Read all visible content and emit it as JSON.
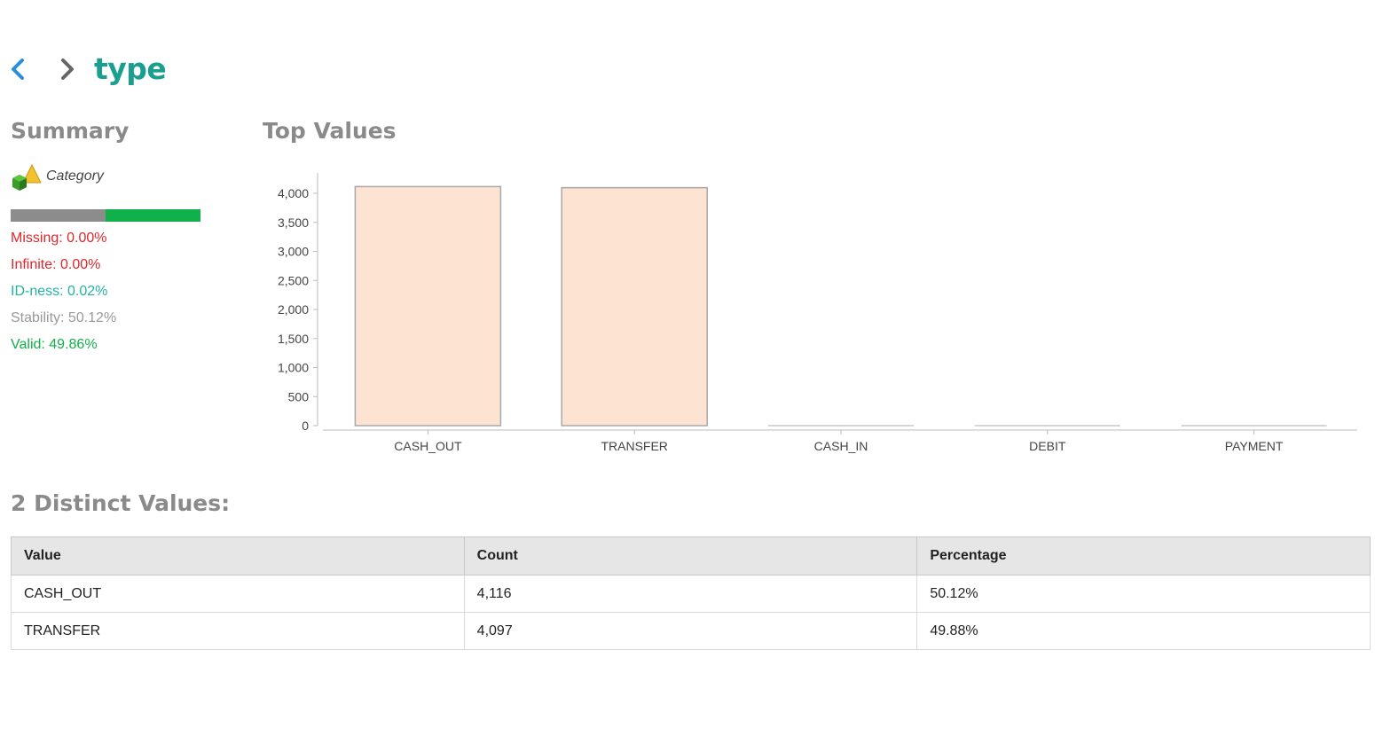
{
  "header": {
    "title": "type"
  },
  "summary": {
    "heading": "Summary",
    "type_label": "Category",
    "quality_bar": {
      "missing_fraction": 0.5,
      "valid_fraction": 0.5
    },
    "missing": "Missing: 0.00%",
    "infinite": "Infinite: 0.00%",
    "idness": "ID-ness: 0.02%",
    "stability": "Stability: 50.12%",
    "valid": "Valid: 49.86%"
  },
  "top_values": {
    "heading": "Top Values"
  },
  "chart_data": {
    "type": "bar",
    "categories": [
      "CASH_OUT",
      "TRANSFER",
      "CASH_IN",
      "DEBIT",
      "PAYMENT"
    ],
    "values": [
      4116,
      4097,
      0,
      0,
      0
    ],
    "ylim": [
      0,
      4000
    ],
    "yticks": [
      0,
      500,
      1000,
      1500,
      2000,
      2500,
      3000,
      3500,
      4000
    ],
    "ytick_labels": [
      "0",
      "500",
      "1,000",
      "1,500",
      "2,000",
      "2,500",
      "3,000",
      "3,500",
      "4,000"
    ],
    "bar_color": "#fde3d1",
    "bar_stroke": "#a8a8a8",
    "grid": false
  },
  "distinct": {
    "heading": "2 Distinct Values:",
    "columns": [
      "Value",
      "Count",
      "Percentage"
    ],
    "rows": [
      [
        "CASH_OUT",
        "4,116",
        "50.12%"
      ],
      [
        "TRANSFER",
        "4,097",
        "49.88%"
      ]
    ]
  },
  "colors": {
    "title": "#1a9e8f",
    "back_arrow": "#2b8fd6",
    "forward_arrow": "#666666",
    "missing": "#e0262a",
    "idness": "#22b3a5",
    "stability": "#999999",
    "valid": "#10b04a"
  },
  "icons": {
    "back": "chevron-left-icon",
    "forward": "chevron-right-icon",
    "category": "category-shapes-icon"
  }
}
